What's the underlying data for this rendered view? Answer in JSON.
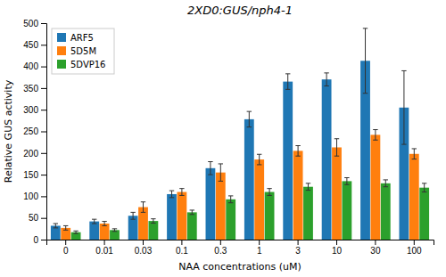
{
  "chart_data": {
    "type": "bar",
    "title": "2XD0:GUS/nph4-1",
    "xlabel": "NAA concentrations (uM)",
    "ylabel": "Relative GUS activity",
    "categories": [
      "0",
      "0.01",
      "0.03",
      "0.1",
      "0.3",
      "1",
      "3",
      "10",
      "30",
      "100"
    ],
    "series": [
      {
        "name": "ARF5",
        "values": [
          32,
          42,
          55,
          105,
          165,
          278,
          365,
          370,
          413,
          305
        ],
        "errors": [
          5,
          5,
          8,
          8,
          15,
          18,
          18,
          15,
          75,
          85
        ]
      },
      {
        "name": "5D5M",
        "values": [
          27,
          37,
          75,
          110,
          155,
          185,
          205,
          213,
          242,
          198
        ],
        "errors": [
          5,
          5,
          12,
          8,
          20,
          12,
          12,
          20,
          12,
          12
        ]
      },
      {
        "name": "5DVP16",
        "values": [
          17,
          22,
          43,
          63,
          93,
          110,
          122,
          135,
          130,
          120
        ],
        "errors": [
          3,
          3,
          5,
          5,
          8,
          8,
          8,
          8,
          8,
          10
        ]
      }
    ],
    "ylim": [
      0,
      500
    ],
    "yticks": [
      0,
      50,
      100,
      150,
      200,
      250,
      300,
      350,
      400,
      450,
      500
    ],
    "grid": false,
    "legend": "upper left"
  }
}
